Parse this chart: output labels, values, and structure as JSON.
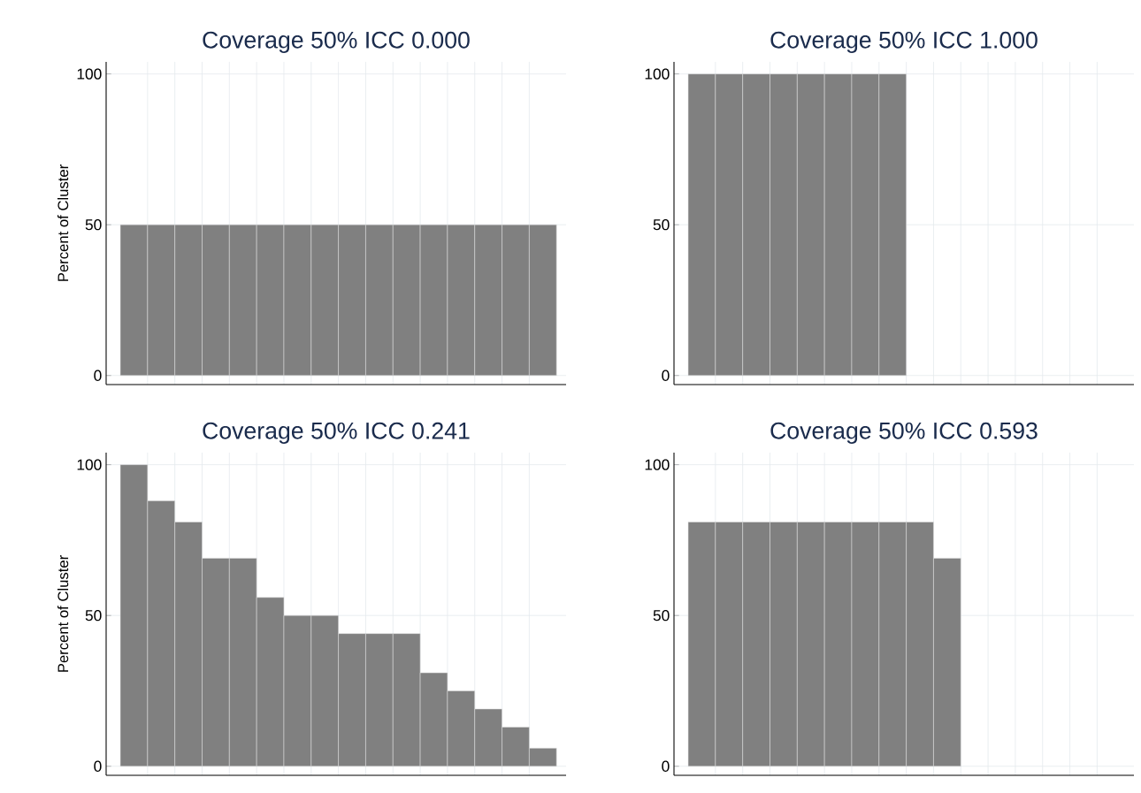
{
  "chart_data": [
    {
      "type": "bar",
      "title": "Coverage 50% ICC 0.000",
      "ylabel": "Percent of Cluster",
      "categories": [
        null,
        null,
        null,
        null,
        null,
        null,
        null,
        null,
        null,
        null,
        null,
        null,
        null,
        null,
        null,
        null
      ],
      "values": [
        50,
        50,
        50,
        50,
        50,
        50,
        50,
        50,
        50,
        50,
        50,
        50,
        50,
        50,
        50,
        50
      ],
      "color": "#808080",
      "ylim": [
        -3,
        104
      ],
      "yticks": [
        0,
        50,
        100
      ],
      "grid": true
    },
    {
      "type": "bar",
      "title": "Coverage 50% ICC 1.000",
      "categories": [
        null,
        null,
        null,
        null,
        null,
        null,
        null,
        null,
        null,
        null,
        null,
        null,
        null,
        null,
        null,
        null
      ],
      "values": [
        100,
        100,
        100,
        100,
        100,
        100,
        100,
        100,
        0,
        0,
        0,
        0,
        0,
        0,
        0,
        0
      ],
      "color": "#808080",
      "ylim": [
        -3,
        104
      ],
      "yticks": [
        0,
        50,
        100
      ],
      "grid": true
    },
    {
      "type": "bar",
      "title": "Coverage 50% ICC 0.241",
      "ylabel": "Percent of Cluster",
      "categories": [
        null,
        null,
        null,
        null,
        null,
        null,
        null,
        null,
        null,
        null,
        null,
        null,
        null,
        null,
        null,
        null
      ],
      "values": [
        100,
        88,
        81,
        69,
        69,
        56,
        50,
        50,
        44,
        44,
        44,
        31,
        25,
        19,
        13,
        6
      ],
      "color": "#808080",
      "ylim": [
        -3,
        104
      ],
      "yticks": [
        0,
        50,
        100
      ],
      "grid": true
    },
    {
      "type": "bar",
      "title": "Coverage 50% ICC 0.593",
      "categories": [
        null,
        null,
        null,
        null,
        null,
        null,
        null,
        null,
        null,
        null,
        null,
        null,
        null,
        null,
        null,
        null
      ],
      "values": [
        81,
        81,
        81,
        81,
        81,
        81,
        81,
        81,
        81,
        69,
        0,
        0,
        0,
        0,
        0,
        0
      ],
      "color": "#808080",
      "ylim": [
        -3,
        104
      ],
      "yticks": [
        0,
        50,
        100
      ],
      "grid": true
    }
  ]
}
